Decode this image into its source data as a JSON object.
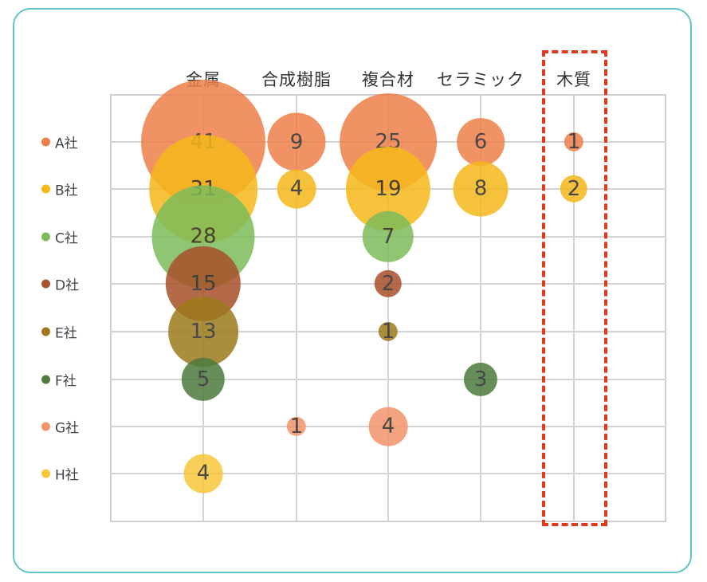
{
  "chart_data": {
    "type": "bubble",
    "title": "",
    "categories": [
      "金属",
      "合成樹脂",
      "複合材",
      "セラミック",
      "木質"
    ],
    "series": [
      {
        "name": "A社",
        "color": "#ef7f4a",
        "values": [
          41,
          9,
          25,
          6,
          1
        ]
      },
      {
        "name": "B社",
        "color": "#f6b81a",
        "values": [
          31,
          4,
          19,
          8,
          2
        ]
      },
      {
        "name": "C社",
        "color": "#7dbb5a",
        "values": [
          28,
          null,
          7,
          null,
          null
        ]
      },
      {
        "name": "D社",
        "color": "#a8502a",
        "values": [
          15,
          null,
          2,
          null,
          null
        ]
      },
      {
        "name": "E社",
        "color": "#9c7a1c",
        "values": [
          13,
          null,
          1,
          null,
          null
        ]
      },
      {
        "name": "F社",
        "color": "#4d7a3d",
        "values": [
          5,
          null,
          null,
          3,
          null
        ]
      },
      {
        "name": "G社",
        "color": "#f3946a",
        "values": [
          null,
          1,
          4,
          null,
          null
        ]
      },
      {
        "name": "H社",
        "color": "#f9c73a",
        "values": [
          4,
          null,
          null,
          null,
          null
        ]
      }
    ],
    "xlabel": "",
    "ylabel": "",
    "grid": true,
    "legend_position": "left",
    "highlight": {
      "category": "木質",
      "style": "red dashed box"
    }
  },
  "header": {
    "columns": [
      "金属",
      "合成樹脂",
      "複合材",
      "セラミック",
      "木質"
    ]
  },
  "legend": {
    "items": [
      {
        "label": "A社",
        "color": "#ef7f4a"
      },
      {
        "label": "B社",
        "color": "#f6b81a"
      },
      {
        "label": "C社",
        "color": "#7dbb5a"
      },
      {
        "label": "D社",
        "color": "#a8502a"
      },
      {
        "label": "E社",
        "color": "#9c7a1c"
      },
      {
        "label": "F社",
        "color": "#4d7a3d"
      },
      {
        "label": "G社",
        "color": "#f3946a"
      },
      {
        "label": "H社",
        "color": "#f9c73a"
      }
    ]
  },
  "colors": {
    "card_border": "#5fc4c4",
    "grid": "#d4d4d4",
    "highlight": "#e03a1e"
  }
}
